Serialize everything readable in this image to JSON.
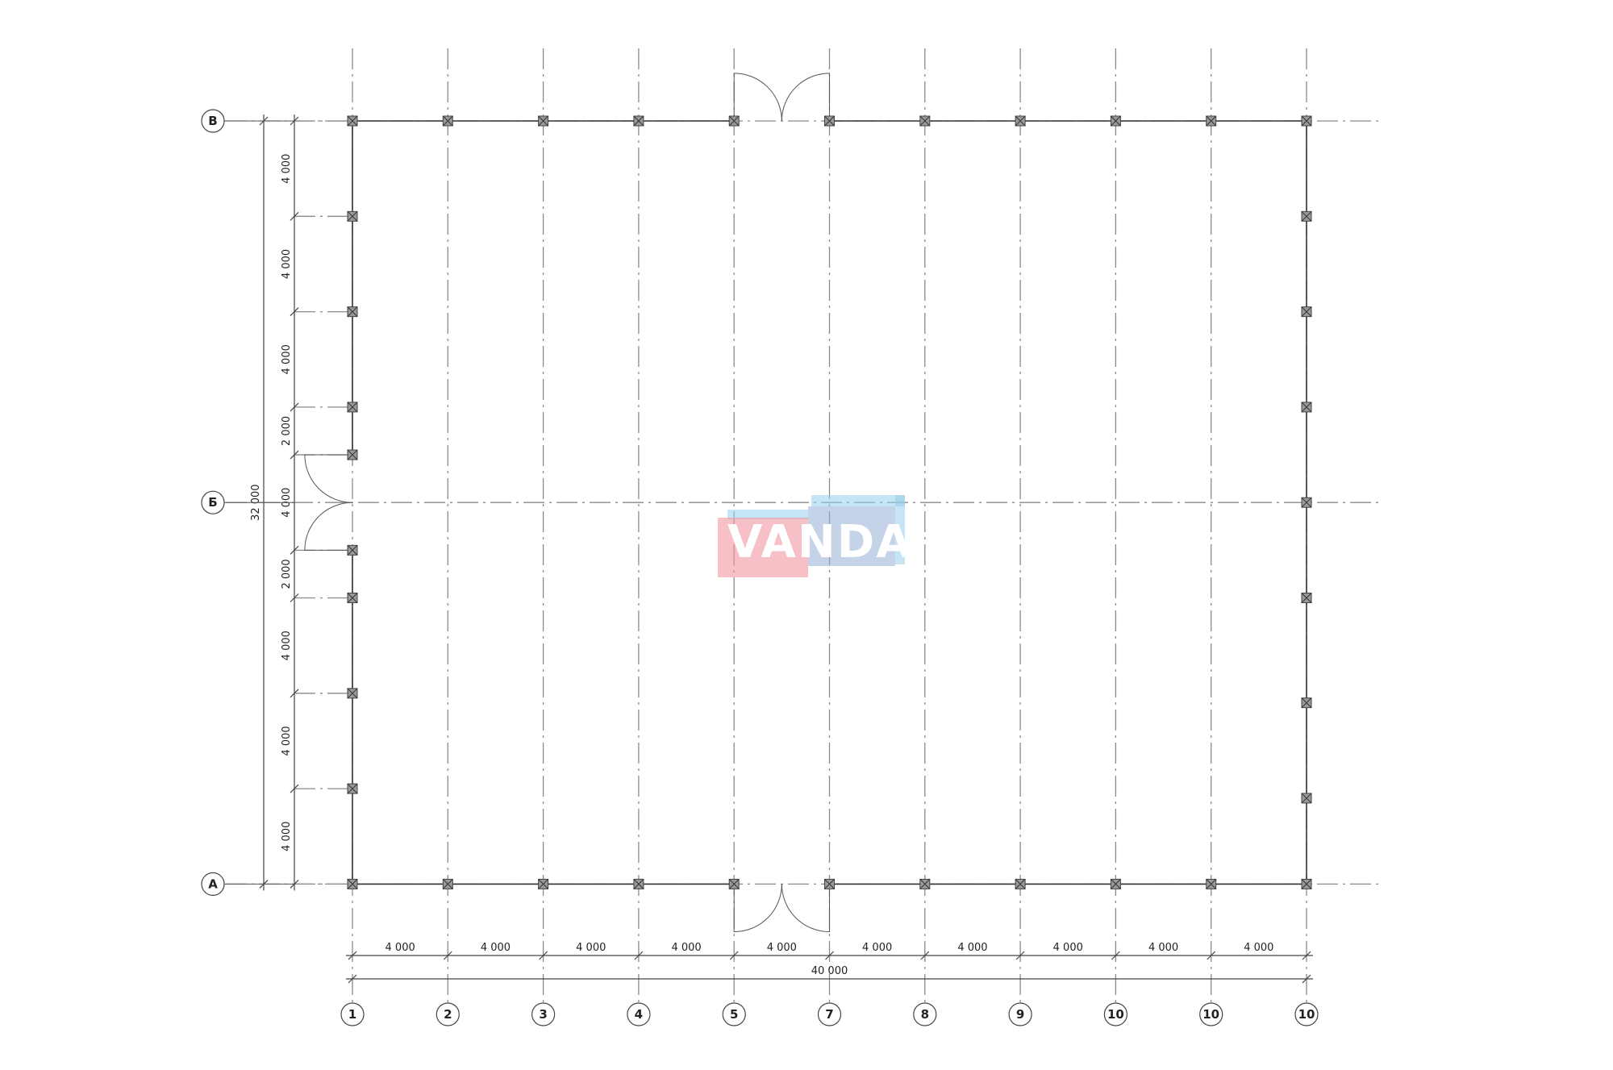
{
  "plan": {
    "column_axes": [
      "1",
      "2",
      "3",
      "4",
      "5",
      "7",
      "8",
      "9",
      "10",
      "10",
      "10"
    ],
    "row_axes": [
      "В",
      "Б",
      "А"
    ],
    "column_spacings": [
      "4 000",
      "4 000",
      "4 000",
      "4 000",
      "4 000",
      "4 000",
      "4 000",
      "4 000",
      "4 000",
      "4 000"
    ],
    "column_spacings_mm": [
      4000,
      4000,
      4000,
      4000,
      4000,
      4000,
      4000,
      4000,
      4000,
      4000
    ],
    "total_width": "40 000",
    "left_spacings": [
      "4 000",
      "4 000",
      "4 000",
      "2 000",
      "4 000",
      "2 000",
      "4 000",
      "4 000",
      "4 000"
    ],
    "left_spacings_mm": [
      4000,
      4000,
      4000,
      2000,
      4000,
      2000,
      4000,
      4000,
      4000
    ],
    "total_height": "32 000",
    "right_wall_columns_mm": [
      0,
      4000,
      8000,
      12000,
      16000,
      20000,
      24400,
      28400,
      32000
    ],
    "left_wall_columns_mm": [
      0,
      4000,
      8000,
      12000,
      14000,
      18000,
      20000,
      24000,
      28000,
      32000
    ],
    "doors": [
      {
        "wall": "top",
        "between_axes": [
          "5",
          "7"
        ]
      },
      {
        "wall": "bottom",
        "between_axes": [
          "5",
          "7"
        ]
      },
      {
        "wall": "left",
        "at_axis": "Б",
        "width_mm": 4000
      }
    ],
    "colors": {
      "grid": "#8a8a8a",
      "wall": "#333333",
      "column": "#888888"
    }
  },
  "watermark": {
    "text": "VANDA"
  }
}
